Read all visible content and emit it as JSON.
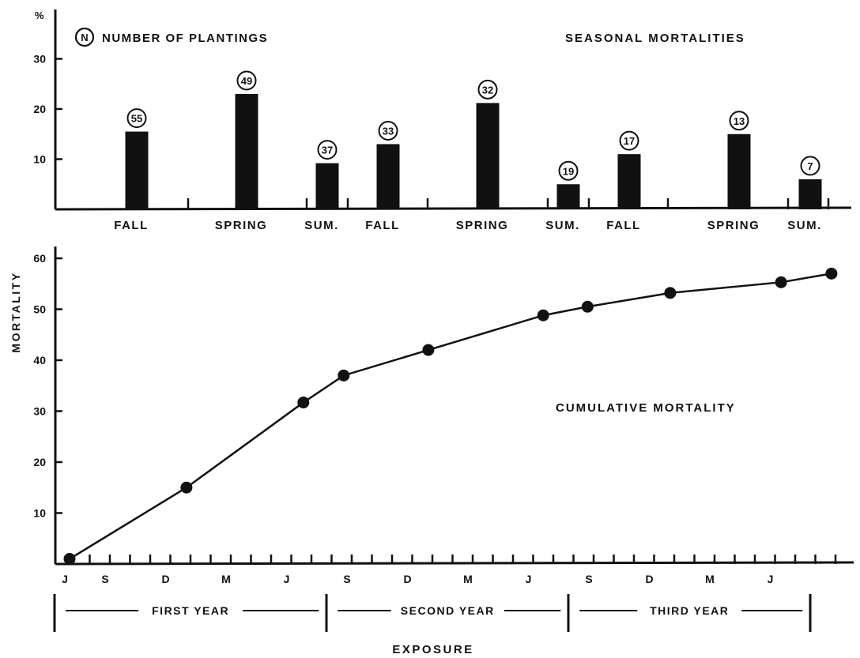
{
  "chart_data": [
    {
      "type": "bar",
      "title": "SEASONAL MORTALITIES",
      "unit_label": "%",
      "legend_symbol": "N",
      "legend_label": "NUMBER OF PLANTINGS",
      "yticks": [
        10,
        20,
        30
      ],
      "ylim": [
        0,
        35
      ],
      "categories": [
        "FALL",
        "SPRING",
        "SUM.",
        "FALL",
        "SPRING",
        "SUM.",
        "FALL",
        "SPRING",
        "SUM."
      ],
      "values": [
        15.5,
        23,
        9.2,
        13,
        21.2,
        5,
        11,
        15,
        6
      ],
      "plantings": [
        "55",
        "49",
        "37",
        "33",
        "32",
        "19",
        "17",
        "13",
        "7"
      ]
    },
    {
      "type": "line",
      "title": "CUMULATIVE MORTALITY",
      "ylabel": "MORTALITY",
      "xlabel": "EXPOSURE",
      "yticks": [
        10,
        20,
        30,
        40,
        50,
        60
      ],
      "ylim": [
        0,
        65
      ],
      "x_tick_labels": [
        "J",
        "S",
        "D",
        "M",
        "J",
        "S",
        "D",
        "M",
        "J",
        "S",
        "D",
        "M",
        "J"
      ],
      "x_tick_months": [
        0,
        2,
        5,
        8,
        11,
        14,
        17,
        20,
        23,
        26,
        29,
        32,
        35
      ],
      "xlim_months": [
        0,
        39
      ],
      "periods": [
        {
          "label": "FIRST YEAR",
          "start_month": 0,
          "end_month": 13.5
        },
        {
          "label": "SECOND YEAR",
          "start_month": 13.5,
          "end_month": 25.5
        },
        {
          "label": "THIRD YEAR",
          "start_month": 25.5,
          "end_month": 37.5
        }
      ],
      "points": [
        {
          "month": 0,
          "value": 1
        },
        {
          "month": 5.8,
          "value": 15
        },
        {
          "month": 11.6,
          "value": 31.7
        },
        {
          "month": 13.6,
          "value": 37
        },
        {
          "month": 17.8,
          "value": 42
        },
        {
          "month": 23.5,
          "value": 48.8
        },
        {
          "month": 25.7,
          "value": 50.5
        },
        {
          "month": 29.8,
          "value": 53.2
        },
        {
          "month": 35.3,
          "value": 55.3
        },
        {
          "month": 37.8,
          "value": 57
        }
      ]
    }
  ]
}
